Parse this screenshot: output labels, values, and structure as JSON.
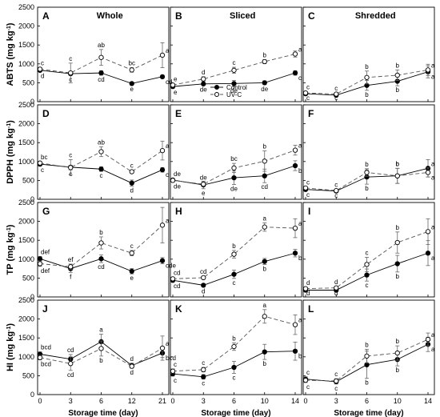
{
  "figure": {
    "column_titles": [
      "Whole",
      "Sliced",
      "Shredded"
    ],
    "row_ylabels": [
      "ABTS (mg kg-1)",
      "DPPH (mg kg-1)",
      "TP (mg kg-1)",
      "HI (mg kg-1)"
    ],
    "xlabel": "Storage time (day)",
    "legend": [
      "Control",
      "UV-C"
    ]
  },
  "chart_data": [
    {
      "panel": "A",
      "row": 0,
      "col": 0,
      "type": "line",
      "title": "Whole",
      "ylabel": "ABTS (mg kg-1)",
      "xlabel": "",
      "ylim": [
        0,
        2500
      ],
      "x_ticks": [
        "0",
        "3",
        "6",
        "12",
        "21"
      ],
      "series": [
        {
          "name": "Control",
          "values": [
            830,
            740,
            760,
            480,
            660
          ],
          "errors": [
            40,
            40,
            60,
            30,
            40
          ],
          "labels": [
            "d",
            "c",
            "cd",
            "e",
            "cd"
          ]
        },
        {
          "name": "UV-C",
          "values": [
            860,
            760,
            1170,
            840,
            1230
          ],
          "errors": [
            40,
            260,
            210,
            60,
            330
          ],
          "labels": [
            "c",
            "c",
            "ab",
            "bc",
            "a"
          ]
        }
      ]
    },
    {
      "panel": "B",
      "row": 0,
      "col": 1,
      "type": "line",
      "title": "Sliced",
      "ylabel": "",
      "xlabel": "",
      "ylim": [
        0,
        2500
      ],
      "x_ticks": [
        "0",
        "3",
        "6",
        "10",
        "14"
      ],
      "series": [
        {
          "name": "Control",
          "values": [
            400,
            470,
            480,
            500,
            760
          ],
          "errors": [
            40,
            40,
            80,
            50,
            60
          ],
          "labels": [
            "e",
            "de",
            "de",
            "de",
            "c"
          ]
        },
        {
          "name": "UV-C",
          "values": [
            440,
            600,
            830,
            1060,
            1260
          ],
          "errors": [
            40,
            60,
            80,
            50,
            80
          ],
          "labels": [
            "e",
            "d",
            "c",
            "b",
            "a"
          ]
        }
      ]
    },
    {
      "panel": "C",
      "row": 0,
      "col": 2,
      "type": "line",
      "title": "Shredded",
      "ylabel": "",
      "xlabel": "",
      "ylim": [
        0,
        2500
      ],
      "x_ticks": [
        "0",
        "3",
        "6",
        "10",
        "14"
      ],
      "series": [
        {
          "name": "Control",
          "values": [
            210,
            170,
            430,
            540,
            790
          ],
          "errors": [
            30,
            30,
            130,
            120,
            160
          ],
          "labels": [
            "c",
            "c",
            "b",
            "b",
            "a"
          ]
        },
        {
          "name": "UV-C",
          "values": [
            230,
            200,
            640,
            700,
            840
          ],
          "errors": [
            30,
            30,
            170,
            140,
            150
          ],
          "labels": [
            "c",
            "c",
            "b",
            "b",
            "a"
          ]
        }
      ]
    },
    {
      "panel": "D",
      "row": 1,
      "col": 0,
      "type": "line",
      "title": "",
      "ylabel": "DPPH (mg kg-1)",
      "xlabel": "",
      "ylim": [
        0,
        2500
      ],
      "x_ticks": [
        "0",
        "3",
        "6",
        "12",
        "21"
      ],
      "series": [
        {
          "name": "Control",
          "values": [
            930,
            850,
            800,
            430,
            780
          ],
          "errors": [
            40,
            200,
            60,
            80,
            60
          ],
          "labels": [
            "c",
            "c",
            "c",
            "d",
            "c"
          ]
        },
        {
          "name": "UV-C",
          "values": [
            960,
            840,
            1260,
            730,
            1290
          ],
          "errors": [
            40,
            60,
            130,
            40,
            250
          ],
          "labels": [
            "bc",
            "c",
            "ab",
            "c",
            "a"
          ]
        }
      ]
    },
    {
      "panel": "E",
      "row": 1,
      "col": 1,
      "type": "line",
      "title": "",
      "ylabel": "",
      "xlabel": "",
      "ylim": [
        0,
        2500
      ],
      "x_ticks": [
        "0",
        "3",
        "6",
        "10",
        "14"
      ],
      "series": [
        {
          "name": "Control",
          "values": [
            510,
            380,
            570,
            620,
            890
          ],
          "errors": [
            40,
            100,
            180,
            180,
            130
          ],
          "labels": [
            "de",
            "e",
            "de",
            "cd",
            "b"
          ]
        },
        {
          "name": "UV-C",
          "values": [
            500,
            400,
            830,
            1010,
            1300
          ],
          "errors": [
            40,
            60,
            120,
            270,
            130
          ],
          "labels": [
            "de",
            "de",
            "bc",
            "b",
            "a"
          ]
        }
      ]
    },
    {
      "panel": "F",
      "row": 1,
      "col": 2,
      "type": "line",
      "title": "",
      "ylabel": "",
      "xlabel": "",
      "ylim": [
        0,
        2500
      ],
      "x_ticks": [
        "0",
        "3",
        "6",
        "10",
        "14"
      ],
      "series": [
        {
          "name": "Control",
          "values": [
            260,
            220,
            590,
            620,
            820
          ],
          "errors": [
            30,
            30,
            190,
            200,
            230
          ],
          "labels": [
            "c",
            "c",
            "b",
            "b",
            "a"
          ]
        },
        {
          "name": "UV-C",
          "values": [
            300,
            230,
            710,
            620,
            710
          ],
          "errors": [
            30,
            30,
            100,
            200,
            120
          ],
          "labels": [
            "c",
            "c",
            "b",
            "b",
            "a"
          ]
        }
      ]
    },
    {
      "panel": "G",
      "row": 2,
      "col": 0,
      "type": "line",
      "title": "",
      "ylabel": "TP (mg kg-1)",
      "xlabel": "",
      "ylim": [
        0,
        2500
      ],
      "x_ticks": [
        "0",
        "3",
        "6",
        "12",
        "21"
      ],
      "series": [
        {
          "name": "Control",
          "values": [
            1010,
            750,
            1010,
            680,
            960
          ],
          "errors": [
            60,
            100,
            100,
            70,
            80
          ],
          "labels": [
            "def",
            "f",
            "cd",
            "e",
            "cde"
          ]
        },
        {
          "name": "UV-C",
          "values": [
            880,
            800,
            1430,
            1160,
            1900
          ],
          "errors": [
            70,
            70,
            160,
            70,
            470
          ],
          "labels": [
            "def",
            "ef",
            "b",
            "c",
            "a"
          ]
        }
      ]
    },
    {
      "panel": "H",
      "row": 2,
      "col": 1,
      "type": "line",
      "title": "",
      "ylabel": "",
      "xlabel": "",
      "ylim": [
        0,
        2500
      ],
      "x_ticks": [
        "0",
        "3",
        "6",
        "10",
        "14"
      ],
      "series": [
        {
          "name": "Control",
          "values": [
            440,
            310,
            600,
            940,
            1160
          ],
          "errors": [
            40,
            40,
            110,
            80,
            100
          ],
          "labels": [
            "cd",
            "d",
            "c",
            "b",
            "b"
          ]
        },
        {
          "name": "UV-C",
          "values": [
            480,
            510,
            1130,
            1850,
            1820
          ],
          "errors": [
            40,
            40,
            100,
            110,
            250
          ],
          "labels": [
            "cd",
            "cd",
            "b",
            "a",
            "a"
          ]
        }
      ]
    },
    {
      "panel": "I",
      "row": 2,
      "col": 2,
      "type": "line",
      "title": "",
      "ylabel": "",
      "xlabel": "",
      "ylim": [
        0,
        2500
      ],
      "x_ticks": [
        "0",
        "3",
        "6",
        "10",
        "14"
      ],
      "series": [
        {
          "name": "Control",
          "values": [
            180,
            180,
            580,
            880,
            1160
          ],
          "errors": [
            30,
            40,
            160,
            220,
            330
          ],
          "labels": [
            "d",
            "d",
            "c",
            "b",
            "a"
          ]
        },
        {
          "name": "UV-C",
          "values": [
            220,
            240,
            860,
            1440,
            1730
          ],
          "errors": [
            30,
            40,
            190,
            280,
            340
          ],
          "labels": [
            "d",
            "d",
            "c",
            "b",
            "a"
          ]
        }
      ]
    },
    {
      "panel": "J",
      "row": 3,
      "col": 0,
      "type": "line",
      "title": "",
      "ylabel": "HI (mg kg-1)",
      "xlabel": "Storage time (day)",
      "ylim": [
        0,
        2500
      ],
      "x_ticks": [
        "0",
        "3",
        "6",
        "12",
        "21"
      ],
      "series": [
        {
          "name": "Control",
          "values": [
            1070,
            940,
            1400,
            770,
            1100
          ],
          "errors": [
            60,
            120,
            200,
            60,
            120
          ],
          "labels": [
            "bcd",
            "cd",
            "a",
            "d",
            "bcd"
          ]
        },
        {
          "name": "UV-C",
          "values": [
            980,
            820,
            1220,
            750,
            1230
          ],
          "errors": [
            60,
            180,
            200,
            50,
            320
          ],
          "labels": [
            "bcd",
            "cd",
            "b",
            "d",
            "a"
          ]
        }
      ]
    },
    {
      "panel": "K",
      "row": 3,
      "col": 1,
      "type": "line",
      "title": "",
      "ylabel": "",
      "xlabel": "Storage time (day)",
      "ylim": [
        0,
        2500
      ],
      "x_ticks": [
        "0",
        "3",
        "6",
        "10",
        "14"
      ],
      "series": [
        {
          "name": "Control",
          "values": [
            550,
            470,
            720,
            1130,
            1150
          ],
          "errors": [
            60,
            60,
            160,
            200,
            240
          ],
          "labels": [
            "c",
            "c",
            "c",
            "b",
            "b"
          ]
        },
        {
          "name": "UV-C",
          "values": [
            620,
            660,
            1270,
            2070,
            1850
          ],
          "errors": [
            60,
            60,
            100,
            180,
            260
          ],
          "labels": [
            "c",
            "c",
            "b",
            "a",
            "a"
          ]
        }
      ]
    },
    {
      "panel": "L",
      "row": 3,
      "col": 2,
      "type": "line",
      "title": "",
      "ylabel": "",
      "xlabel": "Storage time (day)",
      "ylim": [
        0,
        2500
      ],
      "x_ticks": [
        "0",
        "3",
        "6",
        "10",
        "14"
      ],
      "series": [
        {
          "name": "Control",
          "values": [
            410,
            340,
            790,
            930,
            1330
          ],
          "errors": [
            60,
            60,
            360,
            170,
            190
          ],
          "labels": [
            "c",
            "c",
            "b",
            "b",
            "a"
          ]
        },
        {
          "name": "UV-C",
          "values": [
            380,
            360,
            1020,
            1100,
            1460
          ],
          "errors": [
            60,
            60,
            180,
            190,
            170
          ],
          "labels": [
            "c",
            "c",
            "b",
            "b",
            "a"
          ]
        }
      ]
    }
  ]
}
